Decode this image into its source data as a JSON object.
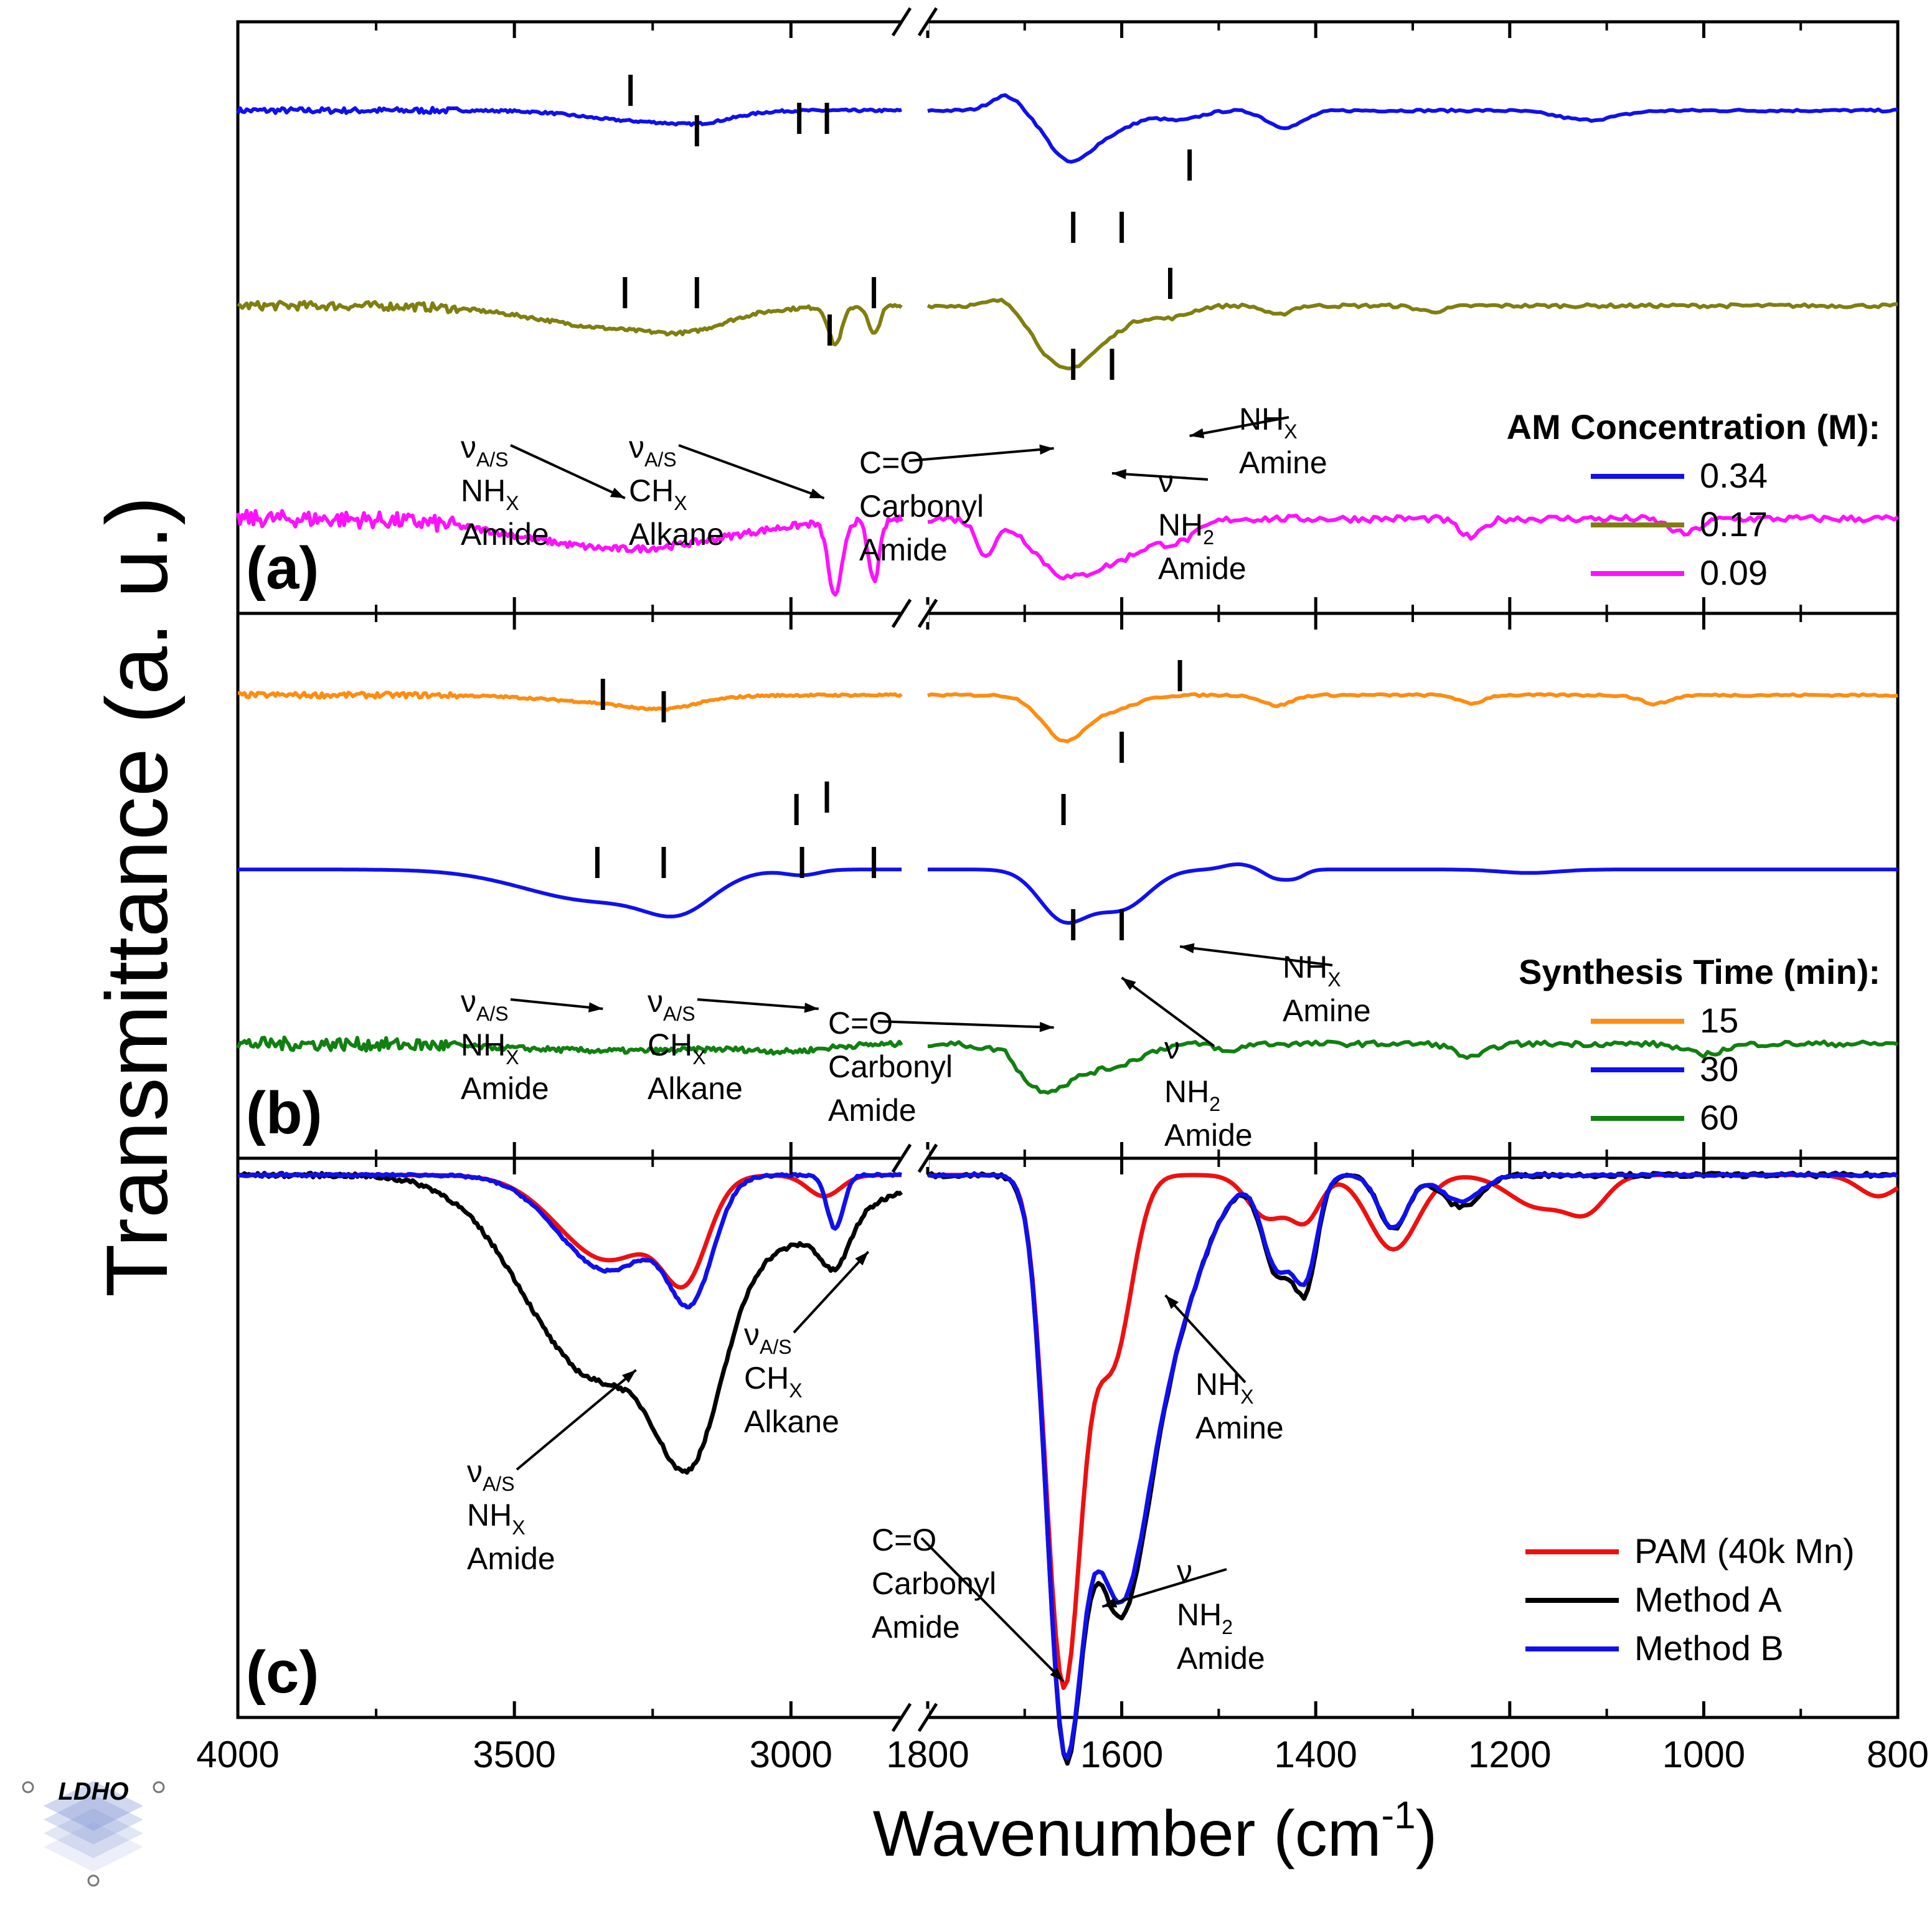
{
  "chart_data": {
    "type": "line",
    "xlabel": "Wavenumber (cm",
    "xlabel_sup": "-1",
    "xlabel_close": ")",
    "ylabel": "Transmittance (a. u.)",
    "x_break": [
      2800,
      1800
    ],
    "x_left_segment": [
      4000,
      2800
    ],
    "x_right_segment": [
      1800,
      800
    ],
    "x_ticks": [
      "4000",
      "3500",
      "3000",
      "1800",
      "1600",
      "1400",
      "1200",
      "1000",
      "800"
    ],
    "panels": [
      {
        "id": "a",
        "label": "(a)",
        "legend_title": "AM Concentration (M):",
        "series": [
          {
            "name": "0.34",
            "color": "#1010ee",
            "offset": 0.85,
            "noise": 0.012,
            "baseline": 0.0,
            "bands": [
              [
                3290,
                0.05,
                90
              ],
              [
                3160,
                0.05,
                60
              ],
              [
                1655,
                0.25,
                22
              ],
              [
                1610,
                0.1,
                25
              ],
              [
                1540,
                0.05,
                20
              ],
              [
                1440,
                0.06,
                15
              ],
              [
                1420,
                0.05,
                15
              ],
              [
                1120,
                0.05,
                30
              ]
            ],
            "peaks_up": [
              [
                1720,
                0.08,
                15
              ]
            ]
          },
          {
            "name": "0.17",
            "color": "#7f7f10",
            "offset": 0.52,
            "noise": 0.018,
            "baseline": 0.0,
            "bands": [
              [
                3300,
                0.12,
                150
              ],
              [
                3180,
                0.05,
                60
              ],
              [
                2920,
                0.2,
                12
              ],
              [
                2850,
                0.15,
                10
              ],
              [
                1660,
                0.32,
                28
              ],
              [
                1610,
                0.1,
                25
              ],
              [
                1550,
                0.06,
                20
              ],
              [
                1440,
                0.05,
                12
              ],
              [
                1280,
                0.03,
                15
              ]
            ],
            "peaks_up": [
              [
                1720,
                0.05,
                15
              ]
            ]
          },
          {
            "name": "0.09",
            "color": "#ff10ff",
            "offset": 0.16,
            "noise": 0.035,
            "baseline": 0.0,
            "bands": [
              [
                3300,
                0.16,
                180
              ],
              [
                2920,
                0.4,
                12
              ],
              [
                2850,
                0.32,
                10
              ],
              [
                1660,
                0.28,
                30
              ],
              [
                1600,
                0.18,
                30
              ],
              [
                1540,
                0.1,
                20
              ],
              [
                1740,
                0.18,
                10
              ],
              [
                1240,
                0.1,
                12
              ],
              [
                1020,
                0.08,
                15
              ]
            ],
            "peaks_up": []
          }
        ],
        "annotations": [
          {
            "lines": [
              "νA/S",
              "NHX",
              "Amide"
            ]
          },
          {
            "lines": [
              "νA/S",
              "CHX",
              "Alkane"
            ]
          },
          {
            "lines": [
              "C=O",
              "Carbonyl",
              "Amide"
            ]
          },
          {
            "lines": [
              "ν",
              "NH2",
              "Amide"
            ]
          },
          {
            "lines": [
              "NHX",
              "Amine"
            ]
          }
        ]
      },
      {
        "id": "b",
        "label": "(b)",
        "legend_title": "Synthesis Time (min):",
        "series": [
          {
            "name": "15",
            "color": "#ff8c10",
            "offset": 0.85,
            "noise": 0.012,
            "baseline": 0.0,
            "bands": [
              [
                3320,
                0.04,
                120
              ],
              [
                3230,
                0.05,
                60
              ],
              [
                1660,
                0.25,
                22
              ],
              [
                1610,
                0.08,
                25
              ],
              [
                1440,
                0.06,
                15
              ],
              [
                1240,
                0.05,
                12
              ],
              [
                1050,
                0.05,
                15
              ]
            ],
            "peaks_up": []
          },
          {
            "name": "30",
            "color": "#1010ee",
            "offset": 0.53,
            "noise": 0.0,
            "baseline": 0.0,
            "bands": [
              [
                3350,
                0.18,
                130
              ],
              [
                3200,
                0.17,
                60
              ],
              [
                2980,
                0.03,
                30
              ],
              [
                1660,
                0.28,
                25
              ],
              [
                1600,
                0.22,
                28
              ],
              [
                1440,
                0.05,
                12
              ],
              [
                1420,
                0.04,
                10
              ],
              [
                1180,
                0.02,
                30
              ]
            ],
            "peaks_up": [
              [
                1480,
                0.03,
                15
              ]
            ]
          },
          {
            "name": "60",
            "color": "#108010",
            "offset": 0.21,
            "noise": 0.03,
            "baseline": 0.0,
            "bands": [
              [
                3300,
                0.04,
                200
              ],
              [
                3000,
                0.03,
                60
              ],
              [
                1680,
                0.26,
                30
              ],
              [
                1610,
                0.12,
                30
              ],
              [
                1240,
                0.08,
                15
              ],
              [
                1000,
                0.06,
                20
              ],
              [
                1490,
                0.05,
                10
              ]
            ],
            "peaks_up": [
              [
                1720,
                0.06,
                10
              ]
            ]
          }
        ],
        "annotations": [
          {
            "lines": [
              "νA/S",
              "NHX",
              "Amide"
            ]
          },
          {
            "lines": [
              "νA/S",
              "CHX",
              "Alkane"
            ]
          },
          {
            "lines": [
              "C=O",
              "Carbonyl",
              "Amide"
            ]
          },
          {
            "lines": [
              "ν",
              "NH2",
              "Amide"
            ]
          },
          {
            "lines": [
              "NHX",
              "Amine"
            ]
          }
        ]
      },
      {
        "id": "c",
        "label": "(c)",
        "legend_title": "",
        "series": [
          {
            "name": "PAM (40k Mn)",
            "color": "#ee1010",
            "offset": 0.97,
            "noise": 0.0,
            "baseline": 0.0,
            "bands": [
              [
                3330,
                0.16,
                90
              ],
              [
                3190,
                0.16,
                40
              ],
              [
                2940,
                0.04,
                30
              ],
              [
                1660,
                0.95,
                18
              ],
              [
                1610,
                0.35,
                20
              ],
              [
                1450,
                0.08,
                20
              ],
              [
                1410,
                0.08,
                15
              ],
              [
                1320,
                0.14,
                25
              ],
              [
                1170,
                0.06,
                30
              ],
              [
                1120,
                0.06,
                20
              ],
              [
                820,
                0.04,
                20
              ]
            ],
            "peaks_up": []
          },
          {
            "name": "Method A",
            "color": "#000000",
            "offset": 0.97,
            "noise": 0.008,
            "baseline": 0.0,
            "bands": [
              [
                3350,
                0.38,
                130
              ],
              [
                3180,
                0.35,
                60
              ],
              [
                3000,
                0.12,
                120
              ],
              [
                2920,
                0.08,
                25
              ],
              [
                1660,
                0.95,
                18
              ],
              [
                1605,
                0.75,
                30
              ],
              [
                1550,
                0.25,
                35
              ],
              [
                1440,
                0.18,
                15
              ],
              [
                1410,
                0.2,
                12
              ],
              [
                1320,
                0.1,
                15
              ],
              [
                1250,
                0.06,
                20
              ]
            ],
            "peaks_up": []
          },
          {
            "name": "Method B",
            "color": "#1010ee",
            "offset": 0.97,
            "noise": 0.004,
            "baseline": 0.0,
            "bands": [
              [
                3330,
                0.18,
                90
              ],
              [
                3180,
                0.2,
                40
              ],
              [
                2920,
                0.1,
                15
              ],
              [
                1660,
                0.95,
                18
              ],
              [
                1605,
                0.72,
                30
              ],
              [
                1550,
                0.25,
                35
              ],
              [
                1440,
                0.17,
                15
              ],
              [
                1410,
                0.18,
                12
              ],
              [
                1320,
                0.1,
                15
              ],
              [
                1250,
                0.05,
                20
              ]
            ],
            "peaks_up": []
          }
        ],
        "annotations": [
          {
            "lines": [
              "νA/S",
              "NHX",
              "Amide"
            ]
          },
          {
            "lines": [
              "νA/S",
              "CHX",
              "Alkane"
            ]
          },
          {
            "lines": [
              "C=O",
              "Carbonyl",
              "Amide"
            ]
          },
          {
            "lines": [
              "ν",
              "NH2",
              "Amide"
            ]
          },
          {
            "lines": [
              "NHX",
              "Amine"
            ]
          }
        ]
      }
    ]
  },
  "watermark": {
    "text": "LDHO",
    "color": "#3b6fc5"
  }
}
